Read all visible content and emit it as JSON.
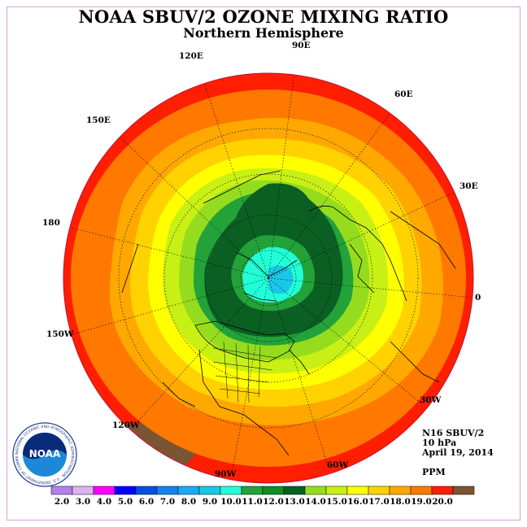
{
  "title": "NOAA SBUV/2 OZONE MIXING RATIO",
  "subtitle": "Northern Hemisphere",
  "longitude_labels": [
    {
      "key": "90e",
      "text": "90E"
    },
    {
      "key": "60e",
      "text": "60E"
    },
    {
      "key": "30e",
      "text": "30E"
    },
    {
      "key": "0",
      "text": "0"
    },
    {
      "key": "30w",
      "text": "30W"
    },
    {
      "key": "60w",
      "text": "60W"
    },
    {
      "key": "90w",
      "text": "90W"
    },
    {
      "key": "120w",
      "text": "120W"
    },
    {
      "key": "150w",
      "text": "150W"
    },
    {
      "key": "180",
      "text": "180"
    },
    {
      "key": "150e",
      "text": "150E"
    },
    {
      "key": "120e",
      "text": "120E"
    }
  ],
  "info": {
    "instrument": "N16 SBUV/2",
    "level": "10 hPa",
    "date": "April 19, 2014"
  },
  "units": "PPM",
  "logo": {
    "text": "NOAA",
    "ring_text": "NATIONAL OCEANIC AND ATMOSPHERIC ADMINISTRATION · U.S. DEPARTMENT OF COMMERCE"
  },
  "colorbar": {
    "labels": [
      "2.0",
      "3.0",
      "4.0",
      "5.0",
      "6.0",
      "7.0",
      "8.0",
      "9.0",
      "10.0",
      "11.0",
      "12.0",
      "13.0",
      "14.0",
      "15.0",
      "16.0",
      "17.0",
      "18.0",
      "19.0",
      "20.0"
    ],
    "colors": [
      "#b37fef",
      "#d8b4f0",
      "#ff00ff",
      "#0000ff",
      "#0050e0",
      "#1482f0",
      "#19aaf5",
      "#19c8e6",
      "#21ffd7",
      "#23a23a",
      "#138c28",
      "#0b5f23",
      "#96dc1e",
      "#c8f014",
      "#ffff00",
      "#ffd200",
      "#ffa800",
      "#ff7800",
      "#ff1e00",
      "#7b5432"
    ]
  },
  "map_colors": {
    "outer": "#ff1e00",
    "band_19": "#ff7800",
    "band_18": "#ffa800",
    "band_17": "#ffd200",
    "band_16": "#ffff00",
    "band_15": "#c8f014",
    "band_14": "#96dc1e",
    "band_13": "#23a23a",
    "band_12": "#0b5f23",
    "band_11": "#23a23a",
    "band_10": "#21ffd7",
    "band_9": "#19c8e6",
    "corner_brown": "#7b5432"
  }
}
